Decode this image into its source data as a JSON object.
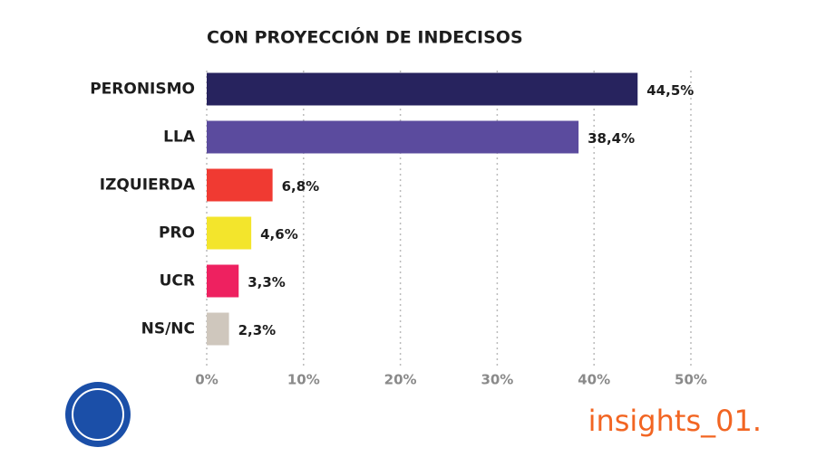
{
  "chart_data": {
    "type": "hbar",
    "title": "CON PROYECCIÓN DE INDECISOS",
    "categories": [
      "PERONISMO",
      "LLA",
      "IZQUIERDA",
      "PRO",
      "UCR",
      "NS/NC"
    ],
    "values": [
      44.5,
      38.4,
      6.8,
      4.6,
      3.3,
      2.3
    ],
    "value_labels": [
      "44,5%",
      "38,4%",
      "6,8%",
      "4,6%",
      "3,3%",
      "2,3%"
    ],
    "colors": [
      "#27235e",
      "#5b4b9e",
      "#f03a32",
      "#f3e52c",
      "#ee2160",
      "#cfc7bd"
    ],
    "xlim": [
      0,
      50
    ],
    "xticks": [
      {
        "value": 0,
        "label": "0%"
      },
      {
        "value": 10,
        "label": "10%"
      },
      {
        "value": 20,
        "label": "20%"
      },
      {
        "value": 30,
        "label": "30%"
      },
      {
        "value": 40,
        "label": "40%"
      },
      {
        "value": 50,
        "label": "50%"
      }
    ],
    "grid": true
  },
  "brand": "insights_01."
}
